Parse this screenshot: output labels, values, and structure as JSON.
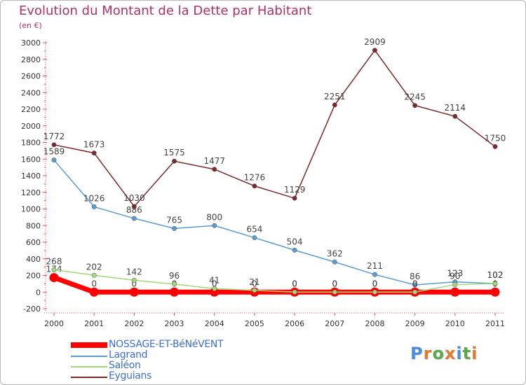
{
  "title": "Evolution du Montant de la Dette par Habitant",
  "subtitle": "(en €)",
  "logo": {
    "text": "Proxiti",
    "colors": [
      "#4a8fd8",
      "#e07a2e",
      "#5aa84a",
      "#e07a2e",
      "#4a8fd8",
      "#5aa84a",
      "#e07a2e"
    ]
  },
  "chart_data": {
    "type": "line",
    "x": [
      "2000",
      "2001",
      "2002",
      "2003",
      "2004",
      "2005",
      "2006",
      "2007",
      "2008",
      "2009",
      "2010",
      "2011"
    ],
    "ylim": [
      -200,
      3000
    ],
    "yticks": [
      -200,
      0,
      200,
      400,
      600,
      800,
      1000,
      1200,
      1400,
      1600,
      1800,
      2000,
      2200,
      2400,
      2600,
      2800,
      3000
    ],
    "grid": false,
    "legend_position": "bottom-left",
    "series": [
      {
        "name": "NOSSAGE-ET-BéNéVENT",
        "color": "#ff0000",
        "thick": true,
        "values": [
          174,
          0,
          0,
          0,
          0,
          0,
          0,
          0,
          0,
          0,
          0,
          0
        ],
        "labels": [
          "174",
          "0",
          "0",
          "0",
          "0",
          "0",
          "0",
          "0",
          "0",
          "0",
          "0",
          "0"
        ]
      },
      {
        "name": "Lagrand",
        "color": "#5b9bd0",
        "thick": false,
        "values": [
          1589,
          1026,
          886,
          765,
          800,
          654,
          504,
          362,
          211,
          86,
          123,
          102
        ],
        "labels": [
          "1589",
          "1026",
          "886",
          "765",
          "800",
          "654",
          "504",
          "362",
          "211",
          "86",
          "123",
          "102"
        ]
      },
      {
        "name": "Saléon",
        "color": "#a0d87a",
        "thick": false,
        "values": [
          268,
          202,
          142,
          96,
          41,
          21,
          0,
          0,
          0,
          0,
          90,
          102
        ],
        "labels": [
          "268",
          "202",
          "142",
          "96",
          "41",
          "21",
          "0",
          "0",
          "0",
          "0",
          "90",
          "102"
        ]
      },
      {
        "name": "Eyguians",
        "color": "#7a2a2a",
        "thick": false,
        "values": [
          1772,
          1673,
          1030,
          1575,
          1477,
          1276,
          1129,
          2251,
          2909,
          2245,
          2114,
          1750
        ],
        "labels": [
          "1772",
          "1673",
          "1030",
          "1575",
          "1477",
          "1276",
          "1129",
          "2251",
          "2909",
          "2245",
          "2114",
          "1750"
        ]
      }
    ]
  }
}
